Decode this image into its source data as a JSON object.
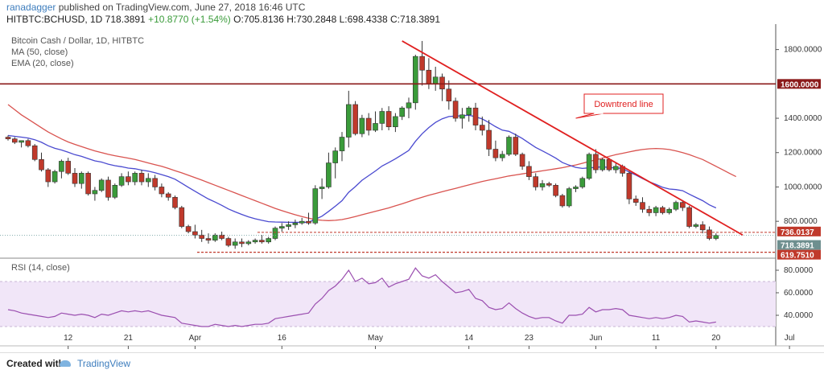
{
  "header": {
    "author": "ranadagger",
    "published": " published on TradingView.com, June 27, 2018 16:46 UTC",
    "symbol_line": "HITBTC:BCHUSD, 1D  718.3891  ",
    "change": "+10.8770 (+1.54%)",
    "ohlc": " O:705.8136  H:730.2848  L:698.4338  C:718.3891"
  },
  "legend": {
    "title": "Bitcoin Cash / Dollar, 1D, HITBTC",
    "ma": "MA (50, close)",
    "ema": "EMA (20, close)"
  },
  "rsi_label": "RSI (14, close)",
  "footer": {
    "created": "Created with",
    "brand": "TradingView"
  },
  "colors": {
    "up": "#3a9b3a",
    "down": "#c0392b",
    "ma50": "#d9534f",
    "ema20": "#4a4ad0",
    "trendline": "#e02020",
    "resistance": "#8b1a1a",
    "support": "#c0392b",
    "rsi_line": "#9b4fb0",
    "rsi_band": "#f1e6f8"
  },
  "chart_data": [
    {
      "type": "candlestick",
      "title": "Bitcoin Cash / Dollar, 1D, HITBTC",
      "xlabel": "",
      "ylabel": "",
      "ylim": [
        590,
        1920
      ],
      "x_tick_labels": [
        "12",
        "21",
        "Apr",
        "16",
        "May",
        "14",
        "23",
        "Jun",
        "11",
        "20",
        "Jul"
      ],
      "y_tick_labels": [
        "1800.0000",
        "1600.0000",
        "1400.0000",
        "1200.0000",
        "1000.0000",
        "800.0000"
      ],
      "candles_ohlc": [
        [
          1290,
          1300,
          1270,
          1280
        ],
        [
          1280,
          1290,
          1250,
          1260
        ],
        [
          1260,
          1270,
          1230,
          1270
        ],
        [
          1270,
          1280,
          1230,
          1240
        ],
        [
          1240,
          1250,
          1150,
          1160
        ],
        [
          1160,
          1200,
          1090,
          1100
        ],
        [
          1100,
          1110,
          1000,
          1030
        ],
        [
          1030,
          1100,
          1020,
          1090
        ],
        [
          1090,
          1160,
          1050,
          1150
        ],
        [
          1150,
          1170,
          1070,
          1080
        ],
        [
          1080,
          1110,
          1000,
          1020
        ],
        [
          1020,
          1090,
          990,
          1080
        ],
        [
          1080,
          1090,
          950,
          960
        ],
        [
          960,
          1000,
          920,
          980
        ],
        [
          980,
          1050,
          970,
          1040
        ],
        [
          1040,
          1060,
          920,
          940
        ],
        [
          940,
          1020,
          930,
          1010
        ],
        [
          1010,
          1080,
          1000,
          1060
        ],
        [
          1060,
          1090,
          1010,
          1030
        ],
        [
          1030,
          1090,
          1010,
          1080
        ],
        [
          1080,
          1100,
          1010,
          1030
        ],
        [
          1030,
          1080,
          1000,
          1050
        ],
        [
          1050,
          1070,
          980,
          1000
        ],
        [
          1000,
          1020,
          940,
          960
        ],
        [
          960,
          970,
          920,
          940
        ],
        [
          940,
          950,
          870,
          880
        ],
        [
          880,
          890,
          760,
          770
        ],
        [
          770,
          780,
          730,
          740
        ],
        [
          740,
          780,
          700,
          720
        ],
        [
          720,
          750,
          680,
          700
        ],
        [
          700,
          730,
          670,
          690
        ],
        [
          690,
          730,
          680,
          720
        ],
        [
          720,
          740,
          690,
          700
        ],
        [
          700,
          710,
          650,
          660
        ],
        [
          660,
          700,
          640,
          680
        ],
        [
          680,
          700,
          650,
          670
        ],
        [
          670,
          690,
          660,
          680
        ],
        [
          680,
          700,
          670,
          690
        ],
        [
          690,
          720,
          670,
          680
        ],
        [
          680,
          710,
          670,
          700
        ],
        [
          700,
          770,
          690,
          760
        ],
        [
          760,
          790,
          740,
          770
        ],
        [
          770,
          800,
          750,
          780
        ],
        [
          780,
          810,
          760,
          790
        ],
        [
          790,
          820,
          780,
          800
        ],
        [
          800,
          850,
          780,
          790
        ],
        [
          790,
          1010,
          780,
          990
        ],
        [
          990,
          1050,
          930,
          1000
        ],
        [
          1000,
          1200,
          990,
          1140
        ],
        [
          1140,
          1230,
          1050,
          1210
        ],
        [
          1210,
          1320,
          1150,
          1290
        ],
        [
          1290,
          1560,
          1230,
          1480
        ],
        [
          1480,
          1500,
          1300,
          1310
        ],
        [
          1310,
          1420,
          1290,
          1400
        ],
        [
          1400,
          1430,
          1300,
          1330
        ],
        [
          1330,
          1440,
          1320,
          1370
        ],
        [
          1370,
          1460,
          1330,
          1440
        ],
        [
          1440,
          1470,
          1330,
          1350
        ],
        [
          1350,
          1430,
          1320,
          1410
        ],
        [
          1410,
          1470,
          1390,
          1460
        ],
        [
          1460,
          1520,
          1400,
          1490
        ],
        [
          1490,
          1770,
          1450,
          1760
        ],
        [
          1760,
          1850,
          1590,
          1680
        ],
        [
          1680,
          1750,
          1570,
          1600
        ],
        [
          1600,
          1700,
          1560,
          1640
        ],
        [
          1640,
          1660,
          1500,
          1570
        ],
        [
          1570,
          1620,
          1450,
          1500
        ],
        [
          1500,
          1520,
          1380,
          1400
        ],
        [
          1400,
          1460,
          1340,
          1420
        ],
        [
          1420,
          1470,
          1380,
          1460
        ],
        [
          1460,
          1490,
          1330,
          1360
        ],
        [
          1360,
          1410,
          1300,
          1330
        ],
        [
          1330,
          1390,
          1180,
          1220
        ],
        [
          1220,
          1270,
          1150,
          1170
        ],
        [
          1170,
          1210,
          1150,
          1190
        ],
        [
          1190,
          1300,
          1180,
          1290
        ],
        [
          1290,
          1310,
          1180,
          1190
        ],
        [
          1190,
          1200,
          1100,
          1120
        ],
        [
          1120,
          1150,
          1040,
          1060
        ],
        [
          1060,
          1080,
          980,
          1000
        ],
        [
          1000,
          1040,
          980,
          1020
        ],
        [
          1020,
          1030,
          1000,
          1010
        ],
        [
          1010,
          1020,
          940,
          950
        ],
        [
          950,
          960,
          880,
          890
        ],
        [
          890,
          1000,
          880,
          990
        ],
        [
          990,
          1010,
          970,
          1000
        ],
        [
          1000,
          1060,
          990,
          1050
        ],
        [
          1050,
          1200,
          1040,
          1190
        ],
        [
          1190,
          1220,
          1080,
          1100
        ],
        [
          1100,
          1170,
          1090,
          1160
        ],
        [
          1160,
          1170,
          1090,
          1100
        ],
        [
          1100,
          1140,
          1080,
          1120
        ],
        [
          1120,
          1130,
          1060,
          1080
        ],
        [
          1080,
          1090,
          900,
          930
        ],
        [
          930,
          950,
          890,
          910
        ],
        [
          910,
          940,
          850,
          870
        ],
        [
          870,
          890,
          830,
          850
        ],
        [
          850,
          890,
          830,
          880
        ],
        [
          880,
          890,
          840,
          850
        ],
        [
          850,
          880,
          840,
          870
        ],
        [
          870,
          920,
          860,
          910
        ],
        [
          910,
          920,
          860,
          880
        ],
        [
          880,
          890,
          760,
          770
        ],
        [
          770,
          790,
          760,
          780
        ],
        [
          780,
          800,
          730,
          750
        ],
        [
          750,
          770,
          690,
          700
        ],
        [
          700,
          730,
          690,
          718
        ]
      ],
      "series": [
        {
          "name": "MA (50, close)",
          "values": [
            1480,
            1450,
            1420,
            1395,
            1370,
            1345,
            1320,
            1300,
            1280,
            1262,
            1248,
            1235,
            1222,
            1210,
            1200,
            1190,
            1182,
            1175,
            1168,
            1160,
            1150,
            1140,
            1130,
            1120,
            1108,
            1095,
            1082,
            1068,
            1054,
            1040,
            1025,
            1010,
            995,
            980,
            965,
            950,
            935,
            920,
            905,
            890,
            875,
            862,
            850,
            838,
            828,
            818,
            810,
            806,
            804,
            806,
            810,
            818,
            828,
            838,
            848,
            858,
            868,
            878,
            890,
            902,
            915,
            928,
            940,
            952,
            962,
            972,
            982,
            992,
            1002,
            1012,
            1022,
            1032,
            1040,
            1048,
            1056,
            1064,
            1070,
            1076,
            1082,
            1088,
            1094,
            1100,
            1106,
            1112,
            1120,
            1128,
            1138,
            1148,
            1158,
            1168,
            1178,
            1188,
            1196,
            1204,
            1212,
            1218,
            1222,
            1224,
            1222,
            1218,
            1210,
            1200,
            1188,
            1174,
            1160,
            1140,
            1120,
            1100,
            1080,
            1060
          ]
        },
        {
          "name": "EMA (20, close)",
          "values": [
            1300,
            1295,
            1290,
            1285,
            1275,
            1260,
            1240,
            1225,
            1215,
            1202,
            1188,
            1178,
            1165,
            1152,
            1145,
            1133,
            1124,
            1118,
            1110,
            1106,
            1098,
            1092,
            1083,
            1072,
            1060,
            1045,
            1022,
            998,
            975,
            952,
            930,
            912,
            893,
            872,
            855,
            840,
            826,
            815,
            806,
            798,
            796,
            795,
            794,
            794,
            794,
            794,
            812,
            830,
            858,
            888,
            920,
            969,
            1002,
            1039,
            1066,
            1093,
            1122,
            1142,
            1164,
            1188,
            1213,
            1266,
            1310,
            1346,
            1376,
            1397,
            1410,
            1413,
            1414,
            1418,
            1408,
            1396,
            1375,
            1351,
            1331,
            1324,
            1304,
            1282,
            1256,
            1230,
            1210,
            1190,
            1168,
            1142,
            1127,
            1114,
            1108,
            1111,
            1114,
            1118,
            1113,
            1111,
            1107,
            1087,
            1069,
            1049,
            1030,
            1015,
            998,
            988,
            985,
            978,
            958,
            939,
            920,
            896,
            878
          ]
        },
        {
          "name": "RSI (14, close)",
          "values": [
            45,
            44,
            42,
            41,
            40,
            39,
            38,
            39,
            42,
            41,
            40,
            41,
            40,
            38,
            41,
            40,
            42,
            44,
            43,
            44,
            43,
            44,
            42,
            40,
            39,
            38,
            33,
            32,
            31,
            30,
            30,
            32,
            31,
            30,
            31,
            30,
            31,
            32,
            32,
            33,
            37,
            38,
            39,
            40,
            41,
            42,
            50,
            55,
            62,
            66,
            72,
            80,
            70,
            73,
            68,
            69,
            73,
            65,
            68,
            70,
            72,
            82,
            75,
            73,
            76,
            70,
            65,
            60,
            61,
            63,
            55,
            53,
            47,
            45,
            46,
            51,
            46,
            42,
            39,
            37,
            38,
            38,
            35,
            33,
            40,
            40,
            41,
            47,
            43,
            45,
            45,
            46,
            45,
            40,
            39,
            38,
            37,
            38,
            37,
            38,
            40,
            39,
            34,
            35,
            34,
            33,
            34
          ]
        }
      ],
      "annotations": [
        {
          "label": "Downtrend line"
        },
        {
          "label": "1600.0000"
        },
        {
          "label": "736.0137"
        },
        {
          "label": "718.3891"
        },
        {
          "label": "619.7510"
        }
      ],
      "rsi_ylim": [
        20,
        90
      ],
      "rsi_tick_labels": [
        "80.0000",
        "60.0000",
        "40.0000"
      ],
      "grid": false,
      "legend": "top-left"
    }
  ]
}
